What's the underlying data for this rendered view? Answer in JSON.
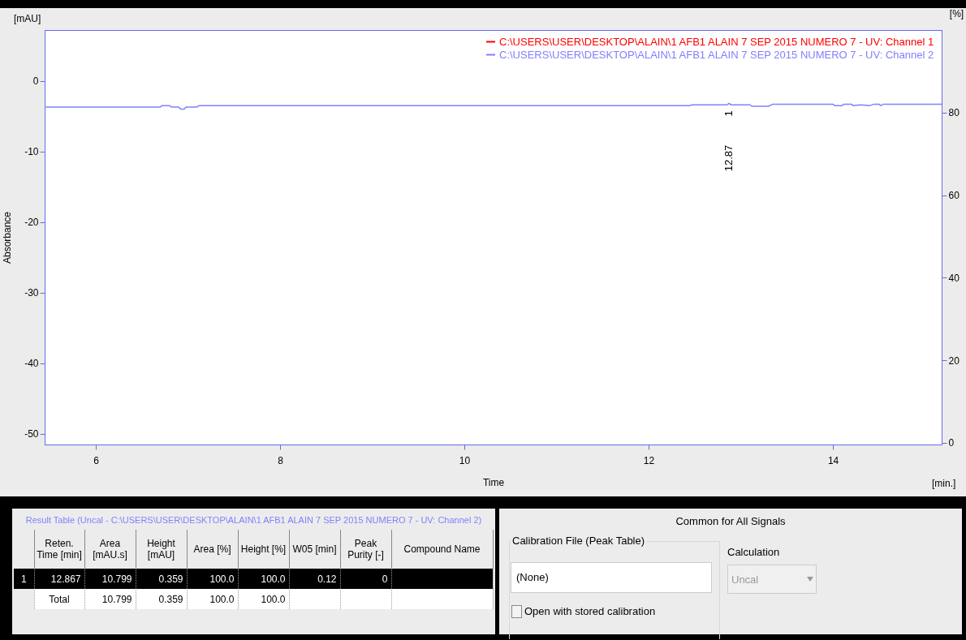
{
  "chart_data": [
    {
      "type": "line",
      "xlabel": "Time",
      "ylabel": "Absorbance",
      "y2label": "[%]",
      "annotations": [
        "[mAU]",
        "[min.]",
        "1",
        "12.87"
      ],
      "xlim": [
        5.445,
        15.18
      ],
      "xticks": [
        6,
        8,
        10,
        12,
        14
      ],
      "ylim": [
        -51.5,
        7.2
      ],
      "yticks": [
        0,
        -10,
        -20,
        -30,
        -40,
        -50
      ],
      "y2lim": [
        -0.4,
        100
      ],
      "y2ticks": [
        0,
        20,
        40,
        60,
        80
      ],
      "legend": "top right",
      "marker": "none",
      "line_style": "solid",
      "series": [
        {
          "name": "C:\\USERS\\USER\\DESKTOP\\ALAIN\\1 AFB1 ALAIN 7 SEP 2015 NUMERO 7 - UV: Channel 1",
          "color": "#ff0000"
        },
        {
          "name": "C:\\USERS\\USER\\DESKTOP\\ALAIN\\1 AFB1 ALAIN 7 SEP 2015 NUMERO 7 - UV: Channel 2",
          "color": "#8080ff",
          "x": [
            5.445,
            6.7,
            6.72,
            6.8,
            6.82,
            6.9,
            6.92,
            6.96,
            6.98,
            7.1,
            7.12,
            12.45,
            12.47,
            12.85,
            12.87,
            12.9,
            13.1,
            13.12,
            13.3,
            13.35,
            14.0,
            14.02,
            14.1,
            14.12,
            14.2,
            14.22,
            14.3,
            14.4,
            14.45,
            14.5,
            14.52,
            14.55,
            15.18
          ],
          "values": [
            -3.7,
            -3.7,
            -3.5,
            -3.5,
            -3.7,
            -3.7,
            -4.0,
            -4.0,
            -3.7,
            -3.7,
            -3.5,
            -3.5,
            -3.4,
            -3.4,
            -3.2,
            -3.4,
            -3.4,
            -3.6,
            -3.6,
            -3.3,
            -3.3,
            -3.5,
            -3.5,
            -3.3,
            -3.3,
            -3.5,
            -3.4,
            -3.5,
            -3.3,
            -3.3,
            -3.5,
            -3.3,
            -3.3
          ]
        }
      ]
    },
    {
      "type": "other",
      "title": "Result Table (Uncal - C:\\USERS\\USER\\DESKTOP\\ALAIN\\1 AFB1 ALAIN 7 SEP 2015 NUMERO 7 - UV: Channel 2)",
      "categories": [
        "Reten. Time [min]",
        "Area [mAU.s]",
        "Height [mAU]",
        "Area [%]",
        "Height [%]",
        "W05 [min]",
        "Peak Purity [-]",
        "Compound Name"
      ],
      "y_categories": [
        "1",
        null
      ],
      "cell_labels": [
        [
          "12.867",
          "10.799",
          "0.359",
          "100.0",
          "100.0",
          "0.12",
          "0",
          null
        ],
        [
          "Total",
          "10.799",
          "0.359",
          "100.0",
          "100.0",
          null,
          null,
          null
        ]
      ]
    },
    {
      "type": "other",
      "title": "Common for All Signals",
      "annotations": [
        "Calibration File (Peak Table)",
        "(None)",
        "Open with stored calibration",
        "Calculation",
        "Uncal"
      ]
    }
  ]
}
